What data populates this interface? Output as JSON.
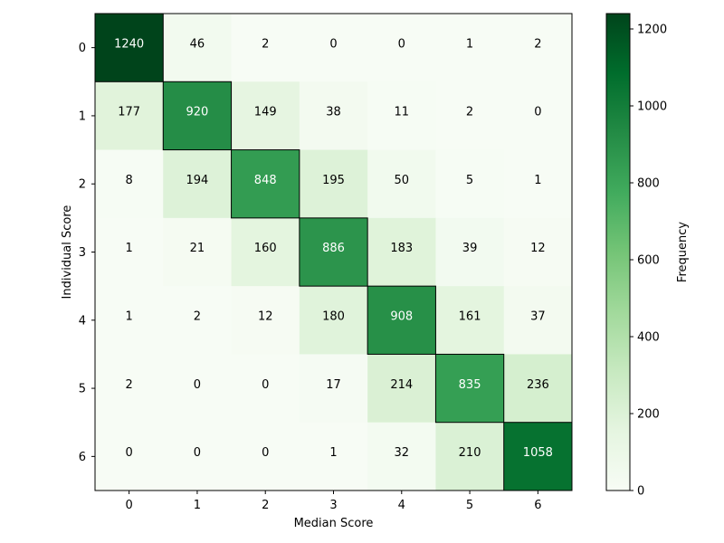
{
  "chart_data": {
    "type": "heatmap",
    "title": "",
    "xlabel": "Median Score",
    "ylabel": "Individual Score",
    "x_categories": [
      "0",
      "1",
      "2",
      "3",
      "4",
      "5",
      "6"
    ],
    "y_categories": [
      "0",
      "1",
      "2",
      "3",
      "4",
      "5",
      "6"
    ],
    "values": [
      [
        1240,
        46,
        2,
        0,
        0,
        1,
        2
      ],
      [
        177,
        920,
        149,
        38,
        11,
        2,
        0
      ],
      [
        8,
        194,
        848,
        195,
        50,
        5,
        1
      ],
      [
        1,
        21,
        160,
        886,
        183,
        39,
        12
      ],
      [
        1,
        2,
        12,
        180,
        908,
        161,
        37
      ],
      [
        2,
        0,
        0,
        17,
        214,
        835,
        236
      ],
      [
        0,
        0,
        0,
        1,
        32,
        210,
        1058
      ]
    ],
    "highlight_diagonal": true,
    "colorbar": {
      "label": "Frequency",
      "min": 0,
      "max": 1240,
      "ticks": [
        0,
        200,
        400,
        600,
        800,
        1000,
        1200
      ],
      "colormap": "Greens",
      "placement": "right"
    },
    "grid": false
  }
}
